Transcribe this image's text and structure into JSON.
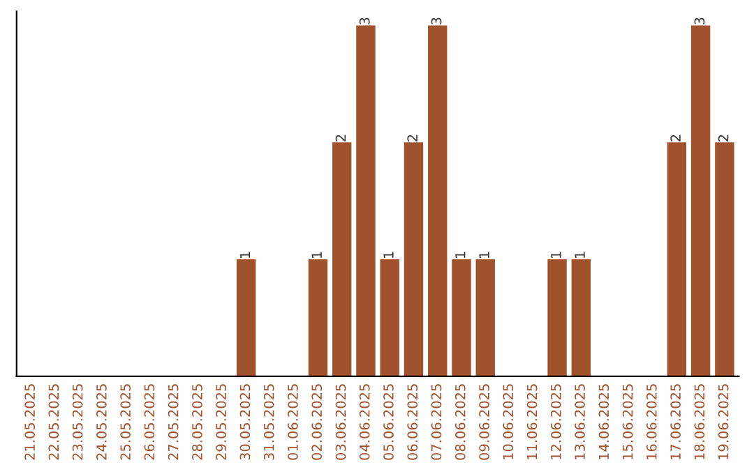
{
  "chart_data": {
    "type": "bar",
    "categories": [
      "21.05.2025",
      "22.05.2025",
      "23.05.2025",
      "24.05.2025",
      "25.05.2025",
      "26.05.2025",
      "27.05.2025",
      "28.05.2025",
      "29.05.2025",
      "30.05.2025",
      "31.05.2025",
      "01.06.2025",
      "02.06.2025",
      "03.06.2025",
      "04.06.2025",
      "05.06.2025",
      "06.06.2025",
      "07.06.2025",
      "08.06.2025",
      "09.06.2025",
      "10.06.2025",
      "11.06.2025",
      "12.06.2025",
      "13.06.2025",
      "14.06.2025",
      "15.06.2025",
      "16.06.2025",
      "17.06.2025",
      "18.06.2025",
      "19.06.2025"
    ],
    "values": [
      0,
      0,
      0,
      0,
      0,
      0,
      0,
      0,
      0,
      1,
      0,
      0,
      1,
      2,
      3,
      1,
      2,
      3,
      1,
      1,
      0,
      0,
      1,
      1,
      0,
      0,
      0,
      2,
      3,
      2
    ],
    "value_labels": [
      null,
      null,
      null,
      null,
      null,
      null,
      null,
      null,
      null,
      "1",
      null,
      null,
      "1",
      "2",
      "3",
      "1",
      "2",
      "3",
      "1",
      "1",
      null,
      null,
      "1",
      "1",
      null,
      null,
      null,
      "2",
      "3",
      "2"
    ],
    "color": "#a0522d",
    "tick_labels": "x",
    "grid": false,
    "legend": false
  }
}
